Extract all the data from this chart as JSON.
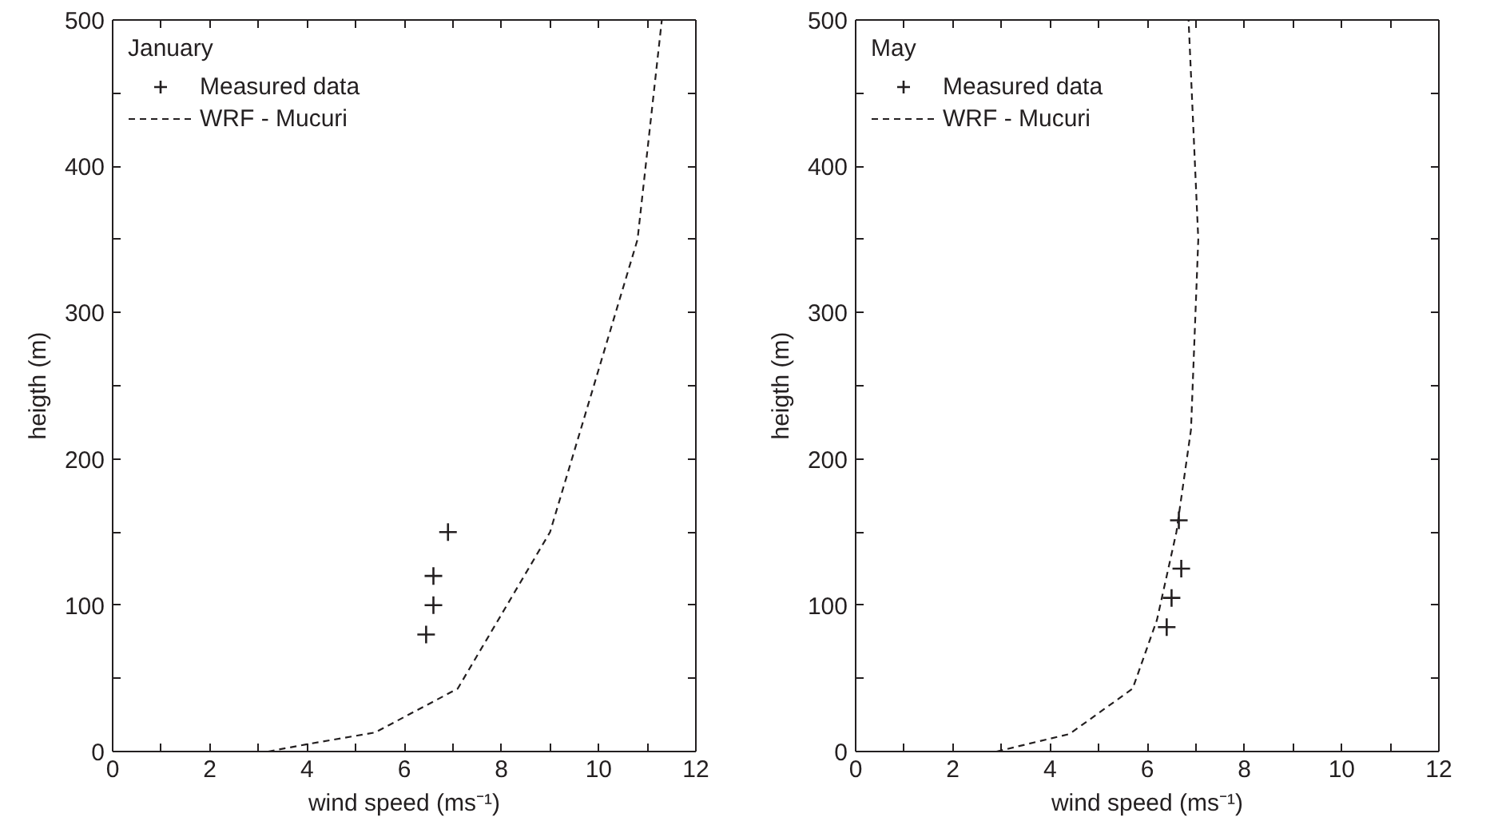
{
  "chart_data": [
    {
      "type": "line",
      "legend_title": "January",
      "xlabel": "wind speed (ms⁻¹)",
      "ylabel": "heigth (m)",
      "xlim": [
        0,
        12
      ],
      "ylim": [
        0,
        500
      ],
      "xticks": [
        0,
        {
          "value": 1,
          "label": null
        },
        2,
        {
          "value": 3,
          "label": null
        },
        4,
        {
          "value": 5,
          "label": null
        },
        6,
        {
          "value": 7,
          "label": null
        },
        8,
        {
          "value": 9,
          "label": null
        },
        10,
        {
          "value": 11,
          "label": null
        },
        12
      ],
      "yticks": [
        0,
        {
          "value": 50,
          "label": null
        },
        100,
        {
          "value": 150,
          "label": null
        },
        200,
        {
          "value": 250,
          "label": null
        },
        300,
        {
          "value": 350,
          "label": null
        },
        400,
        {
          "value": 450,
          "label": null
        },
        500
      ],
      "grid": false,
      "legend": "top left",
      "series": [
        {
          "name": "Measured data",
          "type": "scatter",
          "marker": "cross",
          "color": "#231f20",
          "x": [
            6.45,
            6.6,
            6.6,
            6.9
          ],
          "values": [
            80,
            100,
            120,
            150
          ]
        },
        {
          "name": "WRF - Mucuri",
          "line_style": "dashed",
          "color": "#231f20",
          "x": [
            3.2,
            4,
            5.4,
            7.1,
            9,
            10.8,
            11.3
          ],
          "values": [
            0,
            5,
            13,
            43,
            150,
            350,
            500
          ]
        }
      ]
    },
    {
      "type": "line",
      "legend_title": "May",
      "xlabel": "wind speed (ms⁻¹)",
      "ylabel": "heigth (m)",
      "xlim": [
        0,
        12
      ],
      "ylim": [
        0,
        500
      ],
      "xticks": [
        0,
        {
          "value": 1,
          "label": null
        },
        2,
        {
          "value": 3,
          "label": null
        },
        4,
        {
          "value": 5,
          "label": null
        },
        6,
        {
          "value": 7,
          "label": null
        },
        8,
        {
          "value": 9,
          "label": null
        },
        10,
        {
          "value": 11,
          "label": null
        },
        12
      ],
      "yticks": [
        0,
        {
          "value": 50,
          "label": null
        },
        100,
        {
          "value": 150,
          "label": null
        },
        200,
        {
          "value": 250,
          "label": null
        },
        300,
        {
          "value": 350,
          "label": null
        },
        400,
        {
          "value": 450,
          "label": null
        },
        500
      ],
      "grid": false,
      "legend": "top left",
      "series": [
        {
          "name": "Measured data",
          "type": "scatter",
          "marker": "cross",
          "color": "#231f20",
          "x": [
            6.4,
            6.5,
            6.7,
            6.65
          ],
          "values": [
            85,
            105,
            125,
            158
          ]
        },
        {
          "name": "WRF - Mucuri",
          "line_style": "dashed",
          "color": "#231f20",
          "x": [
            2.9,
            4.4,
            5.7,
            6.2,
            6.6,
            6.9,
            7.05,
            6.85
          ],
          "values": [
            0,
            12,
            43,
            90,
            150,
            220,
            350,
            500
          ]
        }
      ]
    }
  ]
}
